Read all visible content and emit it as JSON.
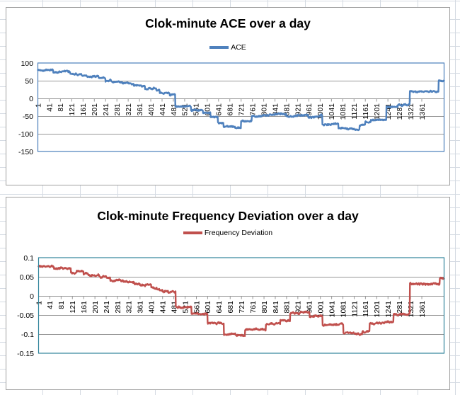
{
  "sheet": {
    "gridline_color": "#d4dae2"
  },
  "chart_data": [
    {
      "type": "line",
      "title": "Clok-minute ACE over a day",
      "legend": "ACE",
      "line_color": "#4F81BD",
      "plot_border_color": "#4A7EBB",
      "grid_color": "#979797",
      "x_range": [
        1,
        1440
      ],
      "ylim": [
        -150,
        100
      ],
      "y_tick_labels": [
        "100",
        "50",
        "0",
        "-50",
        "-100",
        "-150"
      ],
      "y_tick_values": [
        100,
        50,
        0,
        -50,
        -100,
        -150
      ],
      "x_tick_labels": [
        "1",
        "41",
        "81",
        "121",
        "161",
        "201",
        "241",
        "281",
        "321",
        "361",
        "401",
        "441",
        "481",
        "521",
        "561",
        "601",
        "641",
        "681",
        "721",
        "761",
        "801",
        "841",
        "881",
        "921",
        "961",
        "1001",
        "1041",
        "1081",
        "1121",
        "1161",
        "1201",
        "1241",
        "1281",
        "1321",
        "1361"
      ],
      "x_tick_step": 40,
      "grid": true,
      "legend_position": "top",
      "noise_amplitude": 1.8,
      "series_step_points": [
        [
          1,
          80
        ],
        [
          56,
          74
        ],
        [
          76,
          76
        ],
        [
          116,
          70
        ],
        [
          140,
          67
        ],
        [
          156,
          64
        ],
        [
          176,
          62
        ],
        [
          216,
          58
        ],
        [
          241,
          50
        ],
        [
          261,
          46
        ],
        [
          301,
          42
        ],
        [
          341,
          36
        ],
        [
          381,
          28
        ],
        [
          421,
          24
        ],
        [
          433,
          15
        ],
        [
          468,
          10
        ],
        [
          488,
          -23
        ],
        [
          544,
          -33
        ],
        [
          586,
          -40
        ],
        [
          613,
          -53
        ],
        [
          639,
          -68
        ],
        [
          659,
          -80
        ],
        [
          700,
          -83
        ],
        [
          721,
          -64
        ],
        [
          759,
          -50
        ],
        [
          801,
          -47
        ],
        [
          841,
          -44
        ],
        [
          881,
          -50
        ],
        [
          921,
          -47
        ],
        [
          959,
          -53
        ],
        [
          1001,
          -47
        ],
        [
          1009,
          -73
        ],
        [
          1066,
          -84
        ],
        [
          1100,
          -87
        ],
        [
          1141,
          -75
        ],
        [
          1161,
          -66
        ],
        [
          1181,
          -61
        ],
        [
          1236,
          -24
        ],
        [
          1276,
          -18
        ],
        [
          1319,
          19
        ],
        [
          1421,
          49
        ]
      ]
    },
    {
      "type": "line",
      "title": "Clok-minute Frequency Deviation over a day",
      "legend": "Frequency Deviation",
      "line_color": "#C0504D",
      "plot_border_color": "#31849B",
      "grid_color": "#979797",
      "x_range": [
        1,
        1440
      ],
      "ylim": [
        -0.15,
        0.1
      ],
      "y_tick_labels": [
        "0.1",
        "0.05",
        "0",
        "-0.05",
        "-0.1",
        "-0.15"
      ],
      "y_tick_values": [
        0.1,
        0.05,
        0,
        -0.05,
        -0.1,
        -0.15
      ],
      "x_tick_labels": [
        "1",
        "41",
        "81",
        "121",
        "161",
        "201",
        "241",
        "281",
        "321",
        "361",
        "401",
        "441",
        "481",
        "521",
        "561",
        "601",
        "641",
        "681",
        "721",
        "761",
        "801",
        "841",
        "881",
        "921",
        "961",
        "1001",
        "1041",
        "1081",
        "1121",
        "1161",
        "1201",
        "1241",
        "1281",
        "1321",
        "1361"
      ],
      "x_tick_step": 40,
      "grid": true,
      "legend_position": "top",
      "noise_amplitude": 0.0019,
      "series_step_points": [
        [
          1,
          0.078
        ],
        [
          56,
          0.072
        ],
        [
          116,
          0.06
        ],
        [
          136,
          0.064
        ],
        [
          161,
          0.057
        ],
        [
          176,
          0.054
        ],
        [
          216,
          0.05
        ],
        [
          241,
          0.047
        ],
        [
          256,
          0.04
        ],
        [
          301,
          0.036
        ],
        [
          341,
          0.032
        ],
        [
          361,
          0.028
        ],
        [
          401,
          0.02
        ],
        [
          421,
          0.016
        ],
        [
          441,
          0.012
        ],
        [
          461,
          0.009
        ],
        [
          488,
          -0.03
        ],
        [
          544,
          -0.047
        ],
        [
          601,
          -0.071
        ],
        [
          659,
          -0.1
        ],
        [
          700,
          -0.103
        ],
        [
          734,
          -0.088
        ],
        [
          808,
          -0.073
        ],
        [
          859,
          -0.065
        ],
        [
          894,
          -0.045
        ],
        [
          930,
          -0.042
        ],
        [
          963,
          -0.053
        ],
        [
          1009,
          -0.075
        ],
        [
          1083,
          -0.097
        ],
        [
          1120,
          -0.1
        ],
        [
          1150,
          -0.094
        ],
        [
          1176,
          -0.073
        ],
        [
          1193,
          -0.071
        ],
        [
          1230,
          -0.068
        ],
        [
          1261,
          -0.048
        ],
        [
          1319,
          0.031
        ],
        [
          1425,
          0.046
        ]
      ]
    }
  ]
}
